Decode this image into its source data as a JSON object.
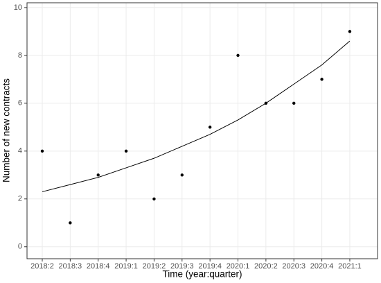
{
  "chart_data": {
    "type": "scatter",
    "x_label": "Time (year:quarter)",
    "y_label": "Number of new contracts",
    "categories": [
      "2018:2",
      "2018:3",
      "2018:4",
      "2019:1",
      "2019:2",
      "2019:3",
      "2019:4",
      "2020:1",
      "2020:2",
      "2020:3",
      "2020:4",
      "2021:1"
    ],
    "series": [
      {
        "mark": "point",
        "color": "#000000",
        "values": [
          4,
          1,
          3,
          4,
          2,
          3,
          5,
          8,
          6,
          6,
          7,
          9
        ]
      },
      {
        "mark": "line",
        "color": "#000000",
        "values": [
          2.3,
          2.6,
          2.9,
          3.3,
          3.7,
          4.2,
          4.7,
          5.3,
          6.0,
          6.8,
          7.6,
          8.6
        ]
      }
    ],
    "ylim": [
      -0.5,
      10.2
    ],
    "yticks": [
      0,
      2,
      4,
      6,
      8,
      10
    ],
    "grid": true
  }
}
